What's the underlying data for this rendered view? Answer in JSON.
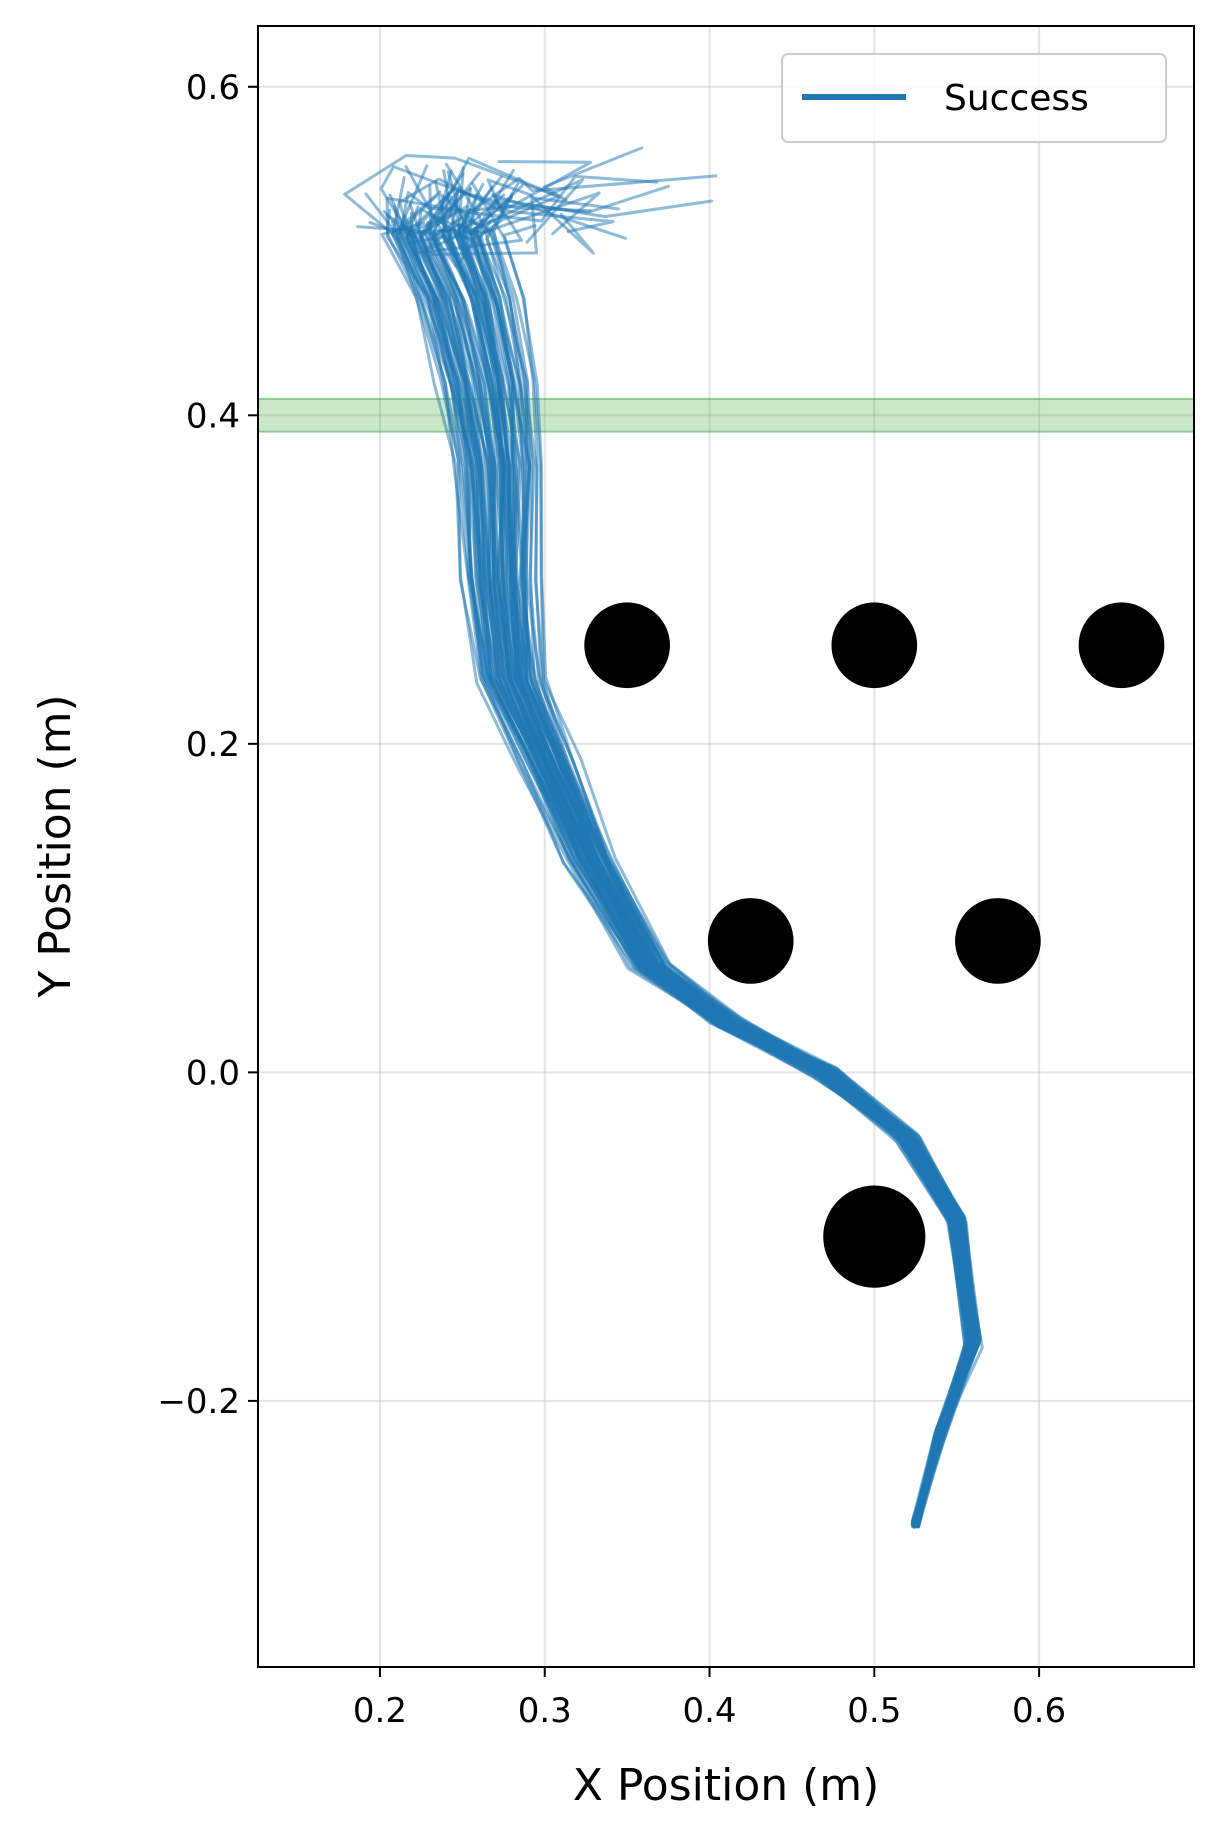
{
  "chart_data": {
    "type": "line",
    "title": "",
    "xlabel": "X Position (m)",
    "ylabel": "Y Position (m)",
    "xlim": [
      0.126,
      0.694
    ],
    "ylim": [
      -0.362,
      0.637
    ],
    "xticks": [
      "0.2",
      "0.3",
      "0.4",
      "0.5",
      "0.6"
    ],
    "yticks": [
      "−0.2",
      "0.0",
      "0.2",
      "0.4",
      "0.6"
    ],
    "xtick_values": [
      0.2,
      0.3,
      0.4,
      0.5,
      0.6
    ],
    "ytick_values": [
      -0.2,
      0.0,
      0.2,
      0.4,
      0.6
    ],
    "grid": true,
    "legend": {
      "position": "top-right",
      "entries": [
        "Success"
      ]
    },
    "colors": {
      "trajectory": "#1f77b4",
      "obstacle": "#000000",
      "goal_band": "#2ca02c"
    },
    "goal_band": {
      "y_min": 0.39,
      "y_max": 0.41
    },
    "obstacles": [
      {
        "x": 0.35,
        "y": 0.26,
        "r": 0.026
      },
      {
        "x": 0.5,
        "y": 0.26,
        "r": 0.026
      },
      {
        "x": 0.65,
        "y": 0.26,
        "r": 0.026
      },
      {
        "x": 0.425,
        "y": 0.08,
        "r": 0.026
      },
      {
        "x": 0.575,
        "y": 0.08,
        "r": 0.026
      },
      {
        "x": 0.5,
        "y": -0.1,
        "r": 0.031
      }
    ],
    "series": [
      {
        "name": "Success",
        "num_trajectories": 90,
        "x": [
          0.525,
          0.54,
          0.56,
          0.55,
          0.52,
          0.47,
          0.41,
          0.36,
          0.32,
          0.29,
          0.265,
          0.255,
          0.25,
          0.24,
          0.225,
          0.205,
          0.19
        ],
        "y": [
          -0.275,
          -0.22,
          -0.165,
          -0.09,
          -0.04,
          0.0,
          0.03,
          0.065,
          0.13,
          0.19,
          0.24,
          0.3,
          0.37,
          0.42,
          0.47,
          0.51,
          0.53
        ]
      }
    ]
  }
}
